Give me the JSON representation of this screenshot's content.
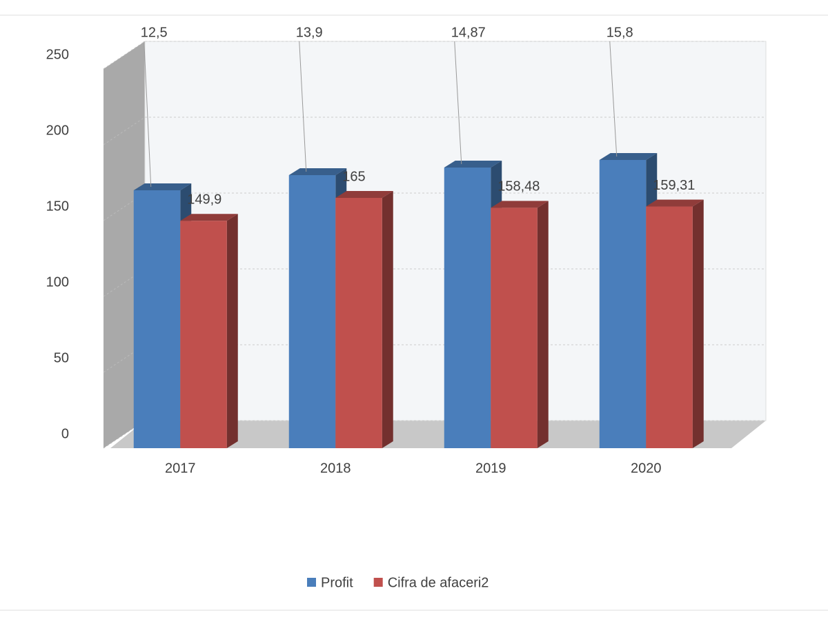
{
  "chart_data": {
    "type": "bar3d",
    "categories": [
      "2017",
      "2018",
      "2019",
      "2020"
    ],
    "series": [
      {
        "name": "Profit",
        "color": "#4a7ebb",
        "values": [
          170,
          180,
          185,
          190
        ]
      },
      {
        "name": "Cifra de afaceri2",
        "color": "#c0504d",
        "values": [
          149.9,
          165,
          158.48,
          159.31
        ],
        "value_labels": [
          "149,9",
          "165",
          "158,48",
          "159,31"
        ]
      }
    ],
    "annotations": [
      "12,5",
      "13,9",
      "14,87",
      "15,8"
    ],
    "ylim": [
      0,
      250
    ],
    "yticks": [
      0,
      50,
      100,
      150,
      200,
      250
    ],
    "grid": true,
    "legend": "bottom"
  }
}
